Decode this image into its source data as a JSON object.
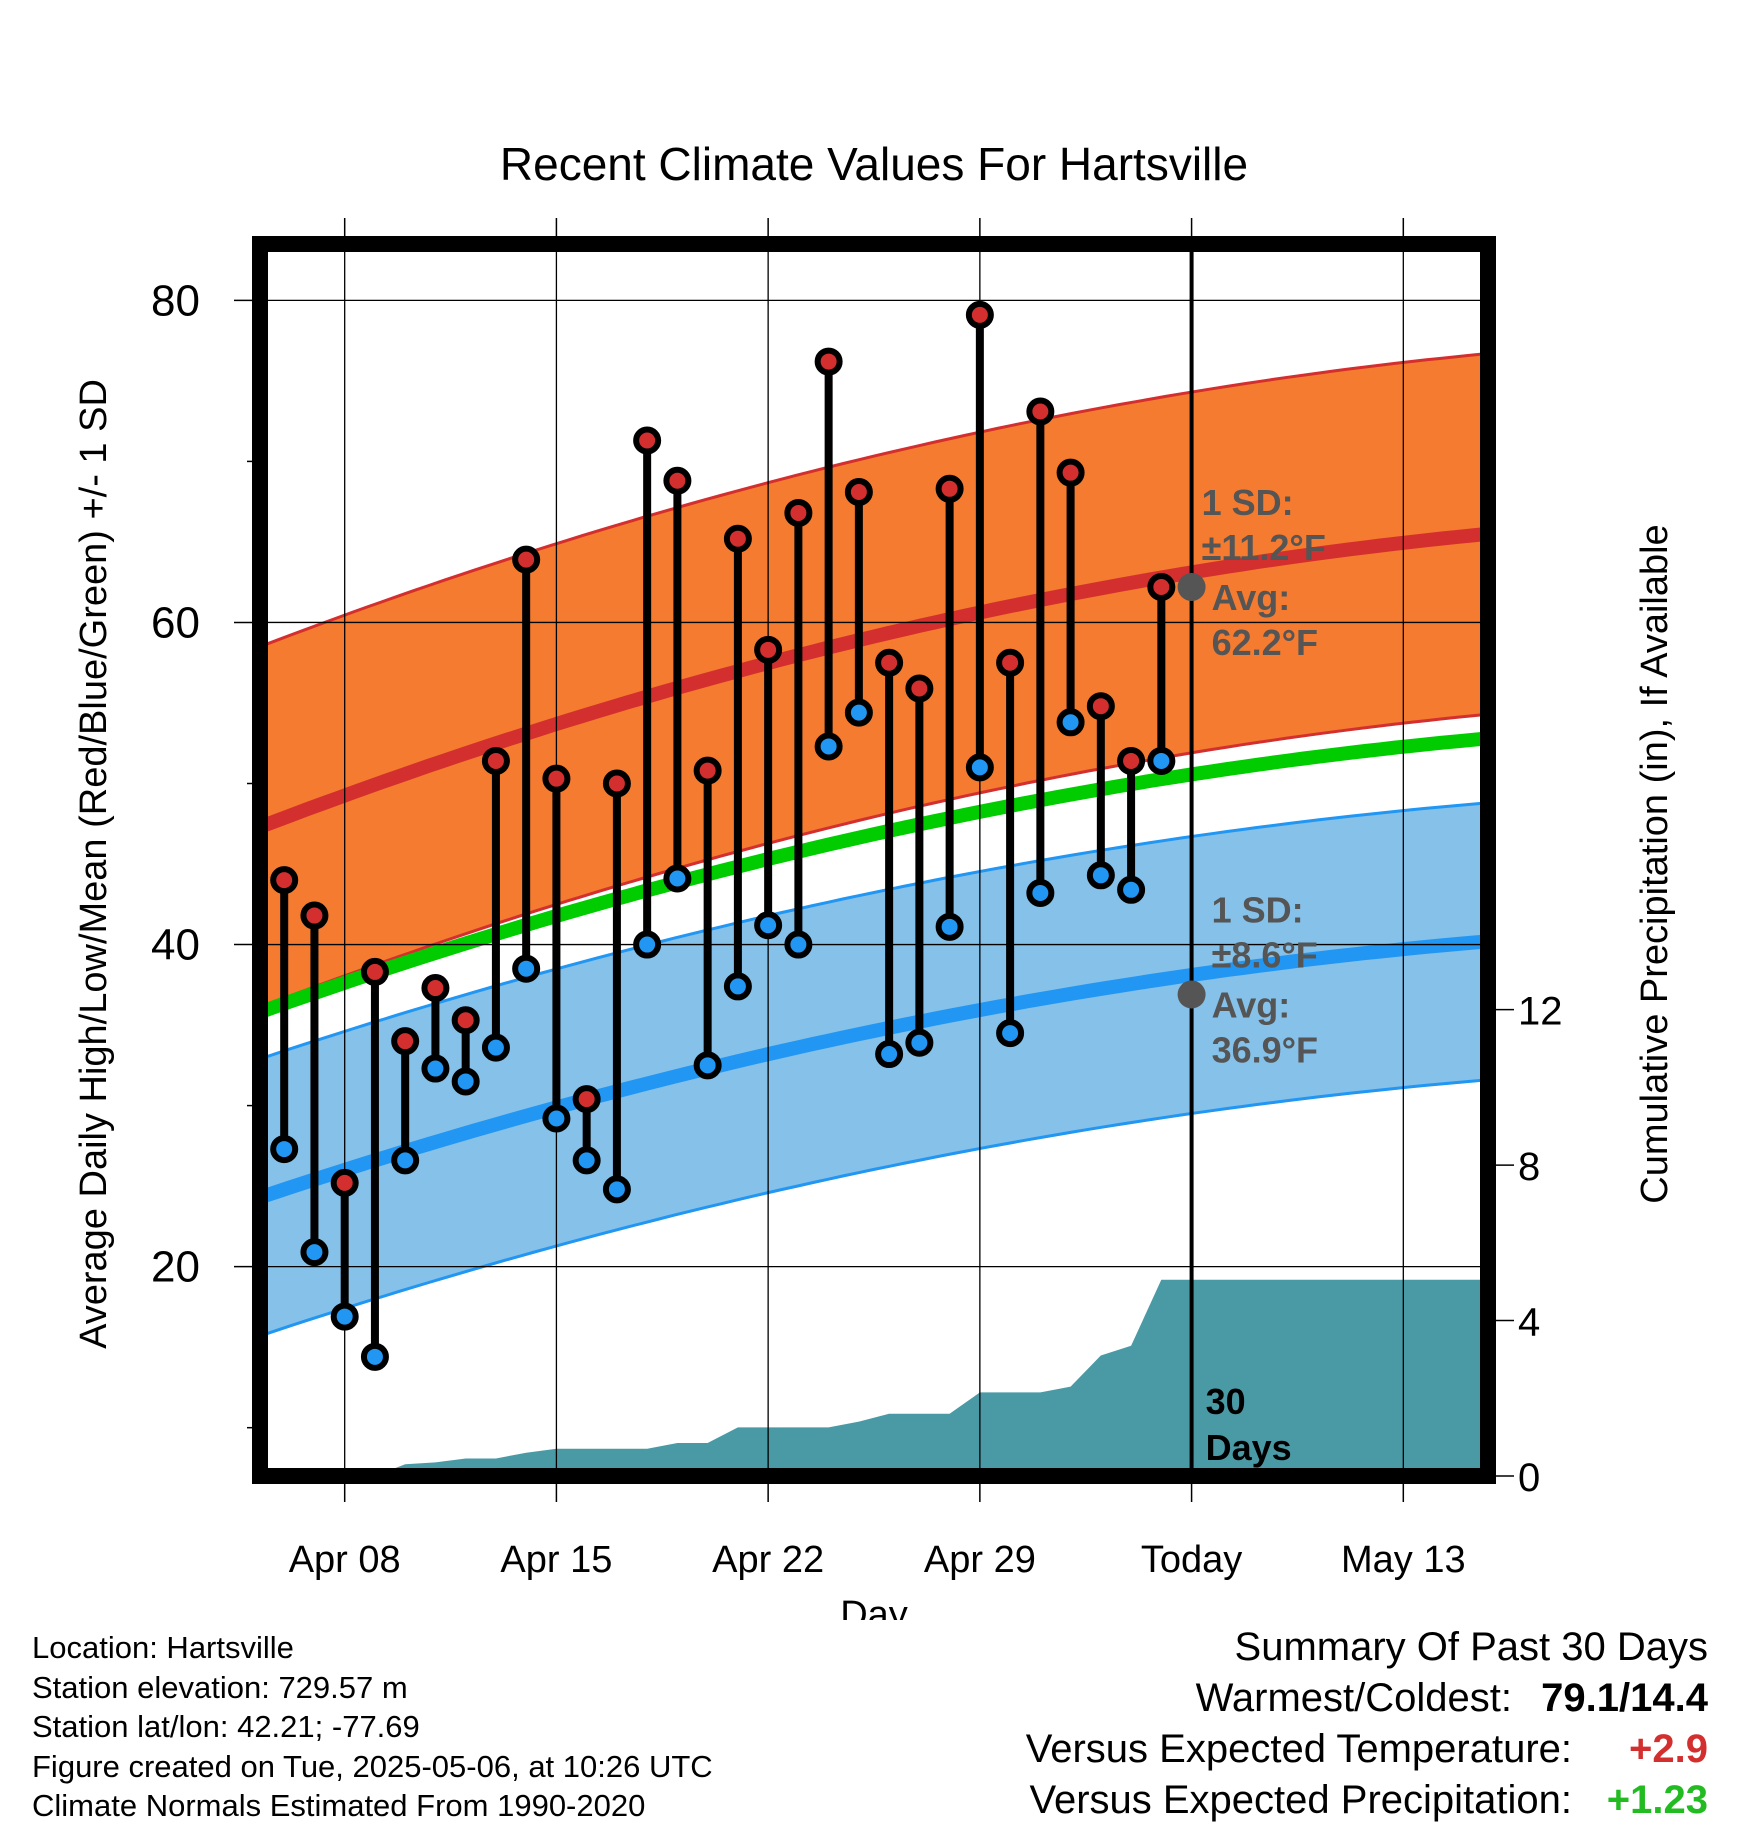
{
  "chart_data": {
    "type": "line",
    "title": "Recent Climate Values For Hartsville",
    "xlabel": "Day",
    "ylabel_left": "Average Daily High/Low/Mean (Red/Blue/Green) +/- 1 SD",
    "ylabel_right": "Cumulative Precipitation (in), If Available",
    "x_ticks": [
      {
        "day": 8,
        "label": "Apr 08"
      },
      {
        "day": 15,
        "label": "Apr 15"
      },
      {
        "day": 22,
        "label": "Apr 22"
      },
      {
        "day": 29,
        "label": "Apr 29"
      },
      {
        "day": 36,
        "label": "Today"
      },
      {
        "day": 43,
        "label": "May 13"
      }
    ],
    "xlim": [
      5.2,
      45.8
    ],
    "ylim_left": [
      7,
      83.5
    ],
    "y_ticks_left": [
      "20",
      "40",
      "60",
      "80"
    ],
    "ylim_right": [
      0,
      31.7
    ],
    "y_ticks_right": [
      "0",
      "4",
      "8",
      "12"
    ],
    "today_day": 36,
    "today_marker_label": [
      "30",
      "Days"
    ],
    "normal_high": {
      "start": 47.3,
      "end": 65.5,
      "sd": 11.2
    },
    "normal_low": {
      "start": 24.3,
      "end": 40.2,
      "sd": 8.6
    },
    "normal_mean": {
      "start": 35.8,
      "end": 52.8
    },
    "annotation_high": {
      "sd_label": "1 SD:",
      "sd_value": "±11.2°F",
      "avg_label": "Avg:",
      "avg_value": "62.2°F",
      "avg": 62.2
    },
    "annotation_low": {
      "sd_label": "1 SD:",
      "sd_value": "±8.6°F",
      "avg_label": "Avg:",
      "avg_value": "36.9°F",
      "avg": 36.9
    },
    "daily": {
      "days": [
        6,
        7,
        8,
        9,
        10,
        11,
        12,
        13,
        14,
        15,
        16,
        17,
        18,
        19,
        20,
        21,
        22,
        23,
        24,
        25,
        26,
        27,
        28,
        29,
        30,
        31,
        32,
        33,
        34,
        35
      ],
      "highs": [
        44.0,
        41.8,
        25.2,
        38.3,
        34.0,
        37.3,
        35.3,
        51.4,
        63.9,
        50.3,
        30.4,
        50.0,
        71.3,
        68.8,
        50.8,
        65.2,
        58.3,
        66.8,
        76.2,
        68.1,
        57.5,
        55.9,
        68.3,
        79.1,
        57.5,
        73.1,
        69.3,
        54.8,
        51.4,
        62.2
      ],
      "lows": [
        27.3,
        20.9,
        16.9,
        14.4,
        26.6,
        32.3,
        31.5,
        33.6,
        38.5,
        29.2,
        26.6,
        24.8,
        40.0,
        44.1,
        32.5,
        37.4,
        41.2,
        40.0,
        52.3,
        54.4,
        33.2,
        33.9,
        41.1,
        51.0,
        34.5,
        43.2,
        53.8,
        44.3,
        43.4,
        51.4
      ],
      "colors": {
        "high": "#d32f2f",
        "low": "#2196f3",
        "line": "#000000",
        "outline": "#000000"
      }
    },
    "precip": {
      "days": [
        5.2,
        8.0,
        9.0,
        10.0,
        11.0,
        12.0,
        13.0,
        14.0,
        15.0,
        16.0,
        17.0,
        18.0,
        19.0,
        20.0,
        21.0,
        22.0,
        23.0,
        24.0,
        25.0,
        26.0,
        27.0,
        28.0,
        29.0,
        30.0,
        31.0,
        32.0,
        33.0,
        34.0,
        35.0,
        36.0,
        45.8
      ],
      "values": [
        0,
        0,
        0,
        0.3,
        0.35,
        0.45,
        0.45,
        0.6,
        0.7,
        0.7,
        0.7,
        0.7,
        0.85,
        0.85,
        1.25,
        1.25,
        1.25,
        1.25,
        1.4,
        1.6,
        1.6,
        1.6,
        2.15,
        2.15,
        2.15,
        2.3,
        3.1,
        3.35,
        5.05,
        5.05,
        5.05
      ]
    },
    "colors": {
      "high_band": "#f47b2f",
      "high_band_edge": "#d32f2f",
      "high_mean": "#d32f2f",
      "low_band": "#85c1e9",
      "low_band_edge": "#2196f3",
      "low_mean": "#2196f3",
      "mean_line": "#00cc00",
      "precip": "#4a9aa6",
      "annotation": "#555555"
    },
    "grid": true
  },
  "info": {
    "location": "Location: Hartsville",
    "elevation": "Station elevation: 729.57 m",
    "latlon": "Station lat/lon: 42.21; -77.69",
    "created": "Figure created on Tue, 2025-05-06, at 10:26 UTC",
    "normals": "Climate Normals Estimated From 1990-2020"
  },
  "summary": {
    "title": "Summary Of Past 30 Days",
    "warm_cold_label": "Warmest/Coldest:",
    "warm_cold_value": "79.1/14.4",
    "temp_label": "Versus Expected Temperature:",
    "temp_value": "+2.9",
    "temp_color": "#d32f2f",
    "precip_label": "Versus Expected Precipitation:",
    "precip_value": "+1.23",
    "precip_color": "#22bb22"
  }
}
